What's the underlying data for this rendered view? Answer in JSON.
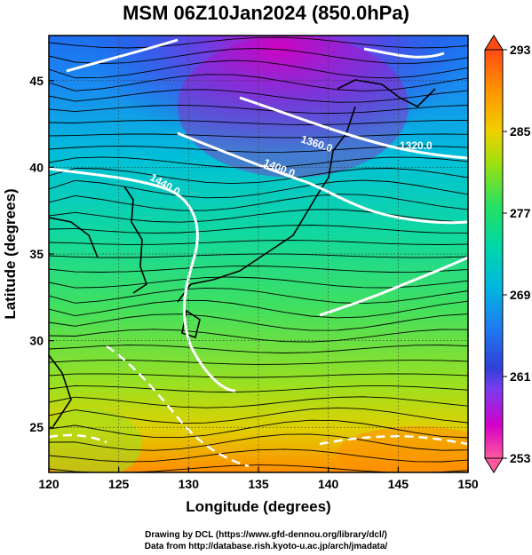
{
  "title": "MSM 06Z10Jan2024 (850.0hPa)",
  "x_axis": {
    "label": "Longitude (degrees)",
    "range": [
      120,
      150
    ],
    "ticks": [
      "120",
      "125",
      "130",
      "135",
      "140",
      "145",
      "150"
    ]
  },
  "y_axis": {
    "label": "Latitude  (degrees)",
    "range": [
      22.4,
      47.6
    ],
    "ticks": [
      "25",
      "30",
      "35",
      "40",
      "45"
    ]
  },
  "colorbar": {
    "range": [
      253,
      293
    ],
    "ticks": [
      "293",
      "285",
      "277",
      "269",
      "261",
      "253"
    ],
    "colors": [
      "#ff5aa0",
      "#d400c8",
      "#7a3cf0",
      "#3040d8",
      "#1e7cf0",
      "#00b8e0",
      "#00d8a8",
      "#28e060",
      "#9ce010",
      "#f0d000",
      "#ff9400",
      "#ff4a14"
    ]
  },
  "contour_labels": [
    "1320.0",
    "1360.0",
    "1400.0",
    "1440.0"
  ],
  "credit": {
    "line1": "Drawing by DCL (https://www.gfd-dennou.org/library/dcl/)",
    "line2": "Data from http://database.rish.kyoto-u.ac.jp/arch/jmadata/"
  }
}
